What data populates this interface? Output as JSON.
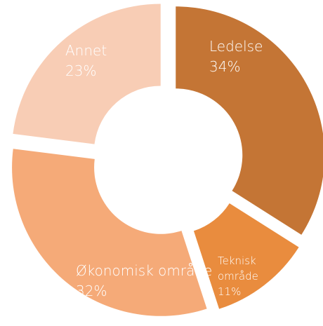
{
  "chart_data": {
    "type": "pie",
    "categories": [
      "Ledelse",
      "Teknisk område",
      "Økonomisk område",
      "Annet"
    ],
    "values": [
      34,
      11,
      32,
      23
    ],
    "value_labels": [
      "34%",
      "11%",
      "32%",
      "23%"
    ],
    "colors": [
      "#c47535",
      "#e98c3e",
      "#f5aa78",
      "#f8cdb5"
    ],
    "donut": true
  }
}
